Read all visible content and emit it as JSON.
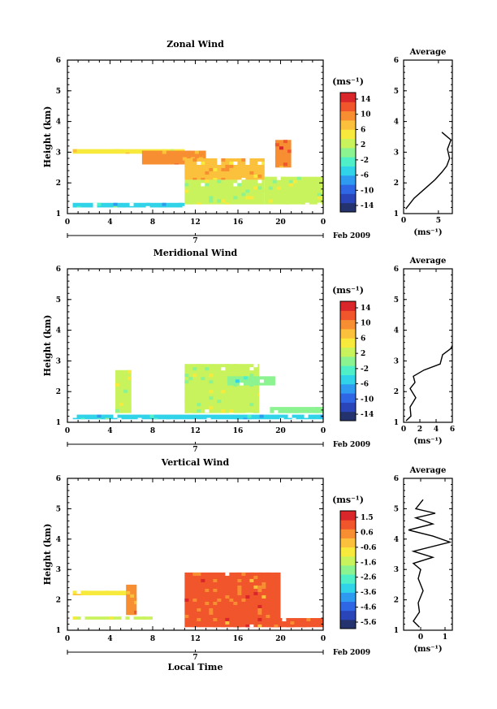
{
  "chart_data": [
    {
      "type": "heatmap",
      "title": "Zonal Wind",
      "ylabel": "Height (km)",
      "xlabel": "",
      "xlim": [
        0,
        24
      ],
      "ylim": [
        1,
        6
      ],
      "xticks": [
        "0",
        "4",
        "8",
        "12",
        "16",
        "20",
        "0"
      ],
      "yticks": [
        "1",
        "2",
        "3",
        "4",
        "5",
        "6"
      ],
      "day_marker": "7",
      "date_label": "Feb 2009",
      "colorbar": {
        "label": "(ms⁻¹)",
        "ticks": [
          "14",
          "10",
          "6",
          "2",
          "-2",
          "-6",
          "-10",
          "-14"
        ],
        "range": [
          -16,
          16
        ]
      },
      "regions": [
        {
          "x": [
            0.5,
            11
          ],
          "y": [
            2.95,
            3.1
          ],
          "value": 6
        },
        {
          "x": [
            7,
            13
          ],
          "y": [
            2.6,
            3.05
          ],
          "value": 9
        },
        {
          "x": [
            11,
            18.5
          ],
          "y": [
            2.1,
            2.8
          ],
          "value": 8
        },
        {
          "x": [
            11,
            18.5
          ],
          "y": [
            1.3,
            2.1
          ],
          "value": 2
        },
        {
          "x": [
            18.5,
            24
          ],
          "y": [
            1.3,
            2.2
          ],
          "value": 3
        },
        {
          "x": [
            19.5,
            21
          ],
          "y": [
            2.5,
            3.4
          ],
          "value": 11
        },
        {
          "x": [
            0.5,
            11
          ],
          "y": [
            1.2,
            1.35
          ],
          "value": -4
        }
      ],
      "average_profile": {
        "title": "Average",
        "xlabel": "(ms⁻¹)",
        "xticks": [
          "0",
          "5"
        ],
        "xlim": [
          0,
          7
        ],
        "x": [
          0.3,
          1.5,
          3.0,
          4.5,
          5.5,
          6.2,
          6.6,
          6.3,
          6.8,
          5.5
        ],
        "y": [
          1.15,
          1.5,
          1.8,
          2.1,
          2.35,
          2.55,
          2.8,
          3.1,
          3.4,
          3.65
        ]
      }
    },
    {
      "type": "heatmap",
      "title": "Meridional Wind",
      "ylabel": "Height (km)",
      "xlabel": "",
      "xlim": [
        0,
        24
      ],
      "ylim": [
        1,
        6
      ],
      "xticks": [
        "0",
        "4",
        "8",
        "12",
        "16",
        "20",
        "0"
      ],
      "yticks": [
        "1",
        "2",
        "3",
        "4",
        "5",
        "6"
      ],
      "day_marker": "7",
      "date_label": "Feb 2009",
      "colorbar": {
        "label": "(ms⁻¹)",
        "ticks": [
          "14",
          "10",
          "6",
          "2",
          "-2",
          "-6",
          "-10",
          "-14"
        ],
        "range": [
          -16,
          16
        ]
      },
      "regions": [
        {
          "x": [
            0.5,
            24
          ],
          "y": [
            1.1,
            1.25
          ],
          "value": -4
        },
        {
          "x": [
            11,
            18
          ],
          "y": [
            1.3,
            2.9
          ],
          "value": 2
        },
        {
          "x": [
            15,
            19.5
          ],
          "y": [
            2.2,
            2.5
          ],
          "value": -1
        },
        {
          "x": [
            19,
            24
          ],
          "y": [
            1.3,
            1.5
          ],
          "value": 1
        },
        {
          "x": [
            4.5,
            6
          ],
          "y": [
            1.3,
            2.7
          ],
          "value": 3
        }
      ],
      "average_profile": {
        "title": "Average",
        "xlabel": "(ms⁻¹)",
        "xticks": [
          "0",
          "2",
          "4",
          "6"
        ],
        "xlim": [
          0,
          6
        ],
        "x": [
          0.3,
          0.9,
          0.8,
          1.5,
          0.8,
          1.4,
          1.2,
          2.5,
          4.5,
          4.8,
          5.8,
          6.0
        ],
        "y": [
          1.05,
          1.2,
          1.5,
          1.8,
          2.1,
          2.3,
          2.5,
          2.7,
          2.9,
          3.2,
          3.4,
          3.5
        ]
      }
    },
    {
      "type": "heatmap",
      "title": "Vertical Wind",
      "ylabel": "Height (km)",
      "xlabel": "Local Time",
      "xlim": [
        0,
        24
      ],
      "ylim": [
        1,
        6
      ],
      "xticks": [
        "0",
        "4",
        "8",
        "12",
        "16",
        "20",
        "0"
      ],
      "yticks": [
        "1",
        "2",
        "3",
        "4",
        "5",
        "6"
      ],
      "day_marker": "7",
      "date_label": "Feb 2009",
      "colorbar": {
        "label": "(ms⁻¹)",
        "ticks": [
          "1.5",
          "0.6",
          "-0.6",
          "-1.6",
          "-2.6",
          "-3.6",
          "-4.6",
          "-5.6"
        ],
        "range": [
          -6,
          2
        ]
      },
      "regions": [
        {
          "x": [
            0.5,
            6
          ],
          "y": [
            2.15,
            2.3
          ],
          "value": -0.5
        },
        {
          "x": [
            0.5,
            8
          ],
          "y": [
            1.35,
            1.45
          ],
          "value": -1.2
        },
        {
          "x": [
            5.5,
            6.5
          ],
          "y": [
            1.5,
            2.5
          ],
          "value": 0.4
        },
        {
          "x": [
            11,
            20
          ],
          "y": [
            1.1,
            2.9
          ],
          "value": 0.8
        },
        {
          "x": [
            19,
            24
          ],
          "y": [
            1.1,
            1.4
          ],
          "value": 0.9
        }
      ],
      "average_profile": {
        "title": "Average",
        "xlabel": "(ms⁻¹)",
        "xticks": [
          "0",
          "1"
        ],
        "xlim": [
          -0.7,
          1.3
        ],
        "x": [
          -0.05,
          -0.3,
          -0.05,
          -0.1,
          0.1,
          -0.1,
          0.0,
          -0.3,
          0.5,
          -0.3,
          1.2,
          0.5,
          -0.5,
          0.5,
          -0.2,
          0.6,
          -0.2,
          0.1
        ],
        "y": [
          1.1,
          1.3,
          1.6,
          1.9,
          2.3,
          2.7,
          3.0,
          3.2,
          3.4,
          3.6,
          3.9,
          4.1,
          4.3,
          4.5,
          4.7,
          4.85,
          5.0,
          5.3
        ]
      }
    }
  ]
}
